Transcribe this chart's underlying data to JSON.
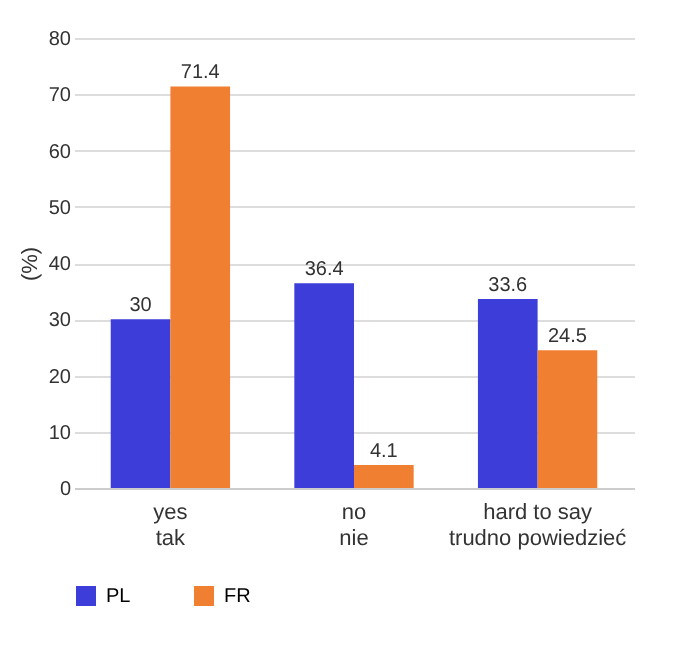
{
  "chart_data": {
    "type": "bar",
    "ylabel": "(%)",
    "categories": [
      "yes\ntak",
      "no\nnie",
      "hard to say\ntrudno powiedzieć"
    ],
    "series": [
      {
        "name": "PL",
        "color": "#3d3dd9",
        "values": [
          30,
          36.4,
          33.6
        ]
      },
      {
        "name": "FR",
        "color": "#f07f31",
        "values": [
          71.4,
          4.1,
          24.5
        ]
      }
    ],
    "ylim": [
      0,
      80
    ],
    "yticks": [
      0,
      10,
      20,
      30,
      40,
      50,
      60,
      70,
      80
    ],
    "grid": "y",
    "legend": "bottom",
    "data_labels": true
  }
}
